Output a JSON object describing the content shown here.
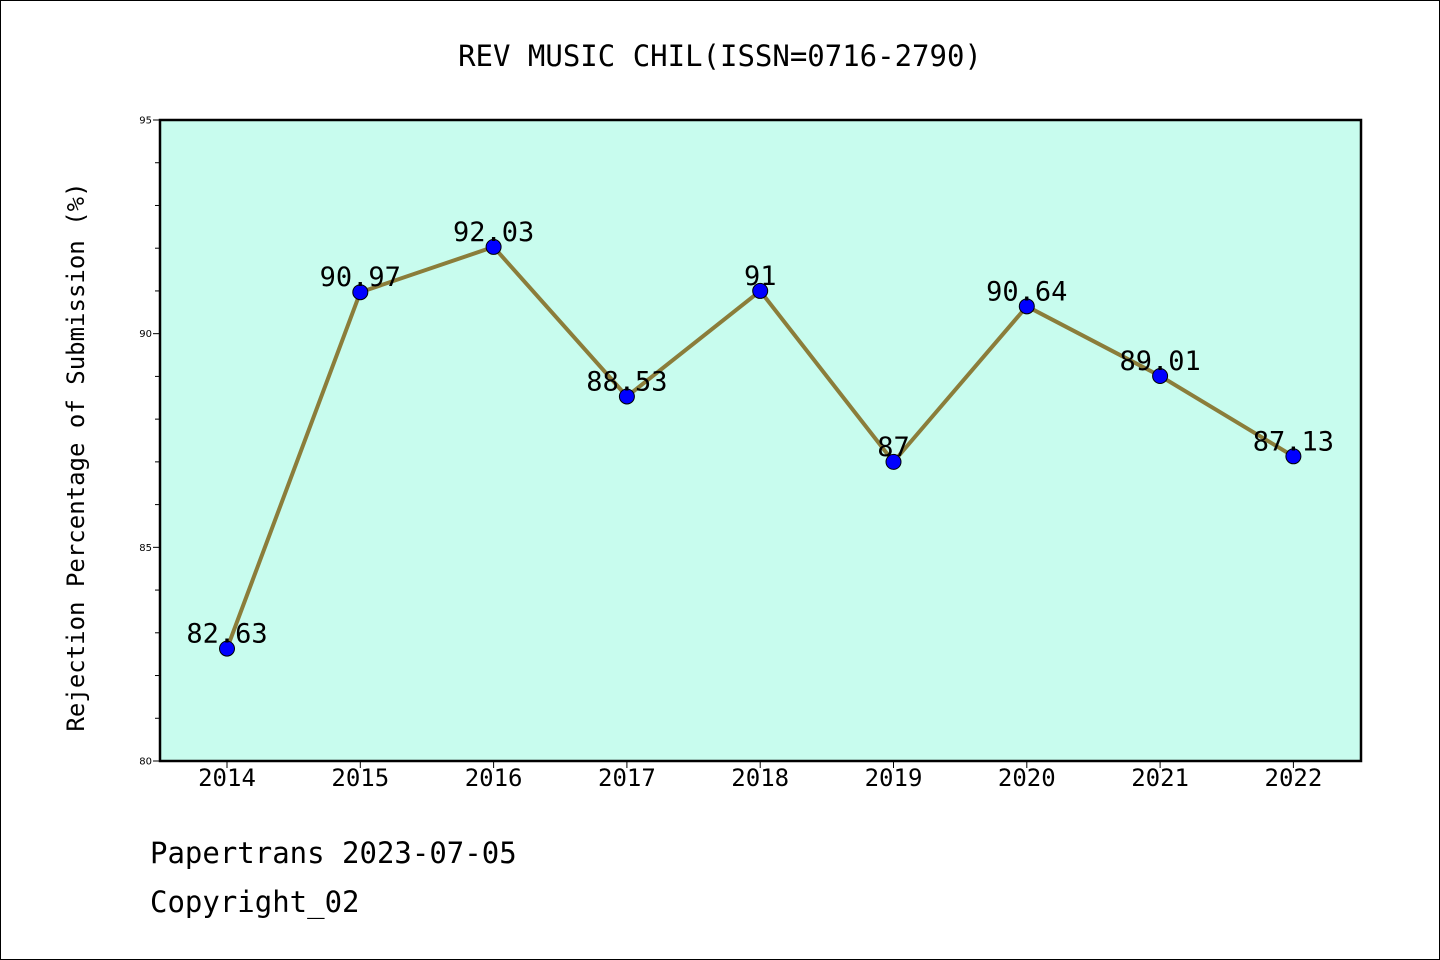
{
  "chart_data": {
    "type": "line",
    "title": "REV MUSIC CHIL(ISSN=0716-2790)",
    "xlabel": "",
    "ylabel": "Rejection Percentage of Submission (%)",
    "categories": [
      "2014",
      "2015",
      "2016",
      "2017",
      "2018",
      "2019",
      "2020",
      "2021",
      "2022"
    ],
    "values": [
      82.63,
      90.97,
      92.03,
      88.53,
      91,
      87,
      90.64,
      89.01,
      87.13
    ],
    "data_labels": [
      "82.63",
      "90.97",
      "92.03",
      "88.53",
      "91",
      "87",
      "90.64",
      "89.01",
      "87.13"
    ],
    "ylim": [
      80,
      95
    ],
    "yticks": [
      80,
      85,
      90,
      95
    ],
    "grid": false,
    "colors": {
      "plot_background": "#c8fcee",
      "line": "#8b7d3a",
      "marker": "#0000ff"
    }
  },
  "footer": {
    "line1": "Papertrans 2023-07-05",
    "line2": "Copyright_02"
  }
}
